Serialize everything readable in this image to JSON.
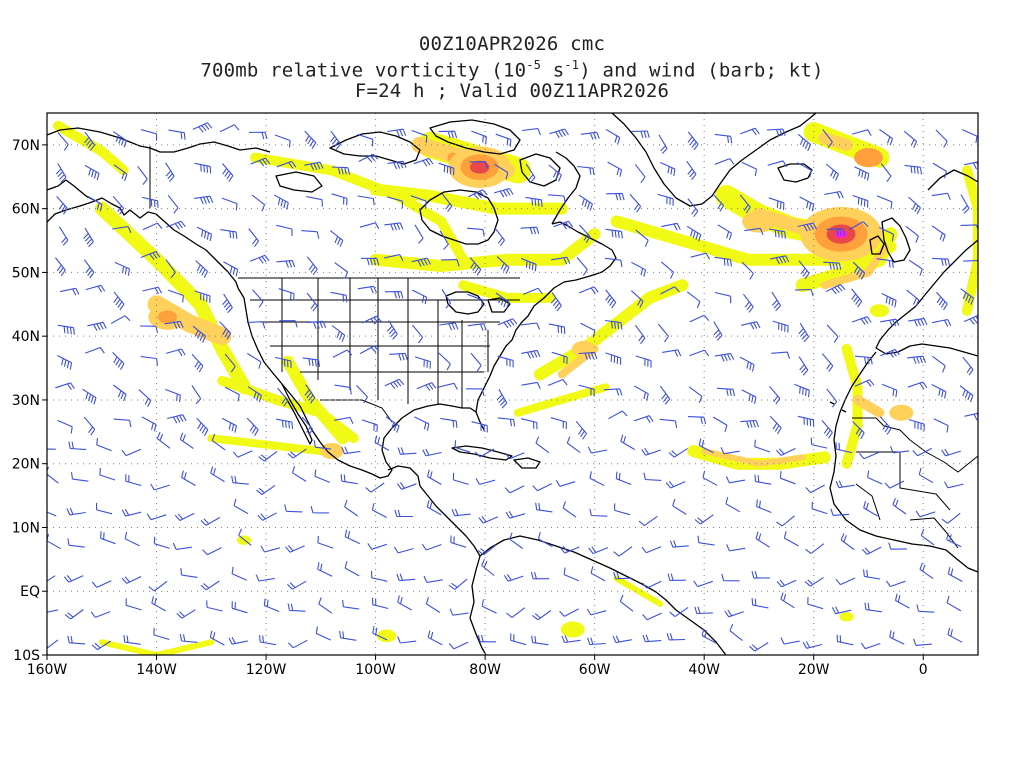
{
  "title": {
    "line1": "00Z10APR2026 cmc",
    "line2_pre": "700mb relative vorticity (10",
    "line2_exp1": "-5",
    "line2_mid": " s",
    "line2_exp2": "-1",
    "line2_post": ") and wind (barb; kt)",
    "line3": "F=24 h ; Valid 00Z11APR2026"
  },
  "axes": {
    "lon_labels": [
      "160W",
      "140W",
      "120W",
      "100W",
      "80W",
      "60W",
      "40W",
      "20W",
      "0"
    ],
    "lat_labels": [
      "70N",
      "60N",
      "50N",
      "40N",
      "30N",
      "20N",
      "10N",
      "EQ",
      "10S"
    ],
    "lon_range": [
      -160,
      10
    ],
    "lat_range": [
      -10,
      75
    ],
    "grid": "dotted"
  },
  "colors": {
    "yellow": "#f0fa14",
    "light_orange": "#ffd05a",
    "orange": "#ffa03c",
    "deep_orange": "#f07828",
    "red": "#e84848",
    "magenta": "#ff1ee6",
    "barb": "#3c50dc",
    "coast": "#000000",
    "grid": "#7f7f7f"
  },
  "vorticity_max": [
    {
      "lon": 81,
      "lat": 66.5
    },
    {
      "lon": 15,
      "lat": 56
    },
    {
      "lon": 138,
      "lat": 43
    }
  ]
}
